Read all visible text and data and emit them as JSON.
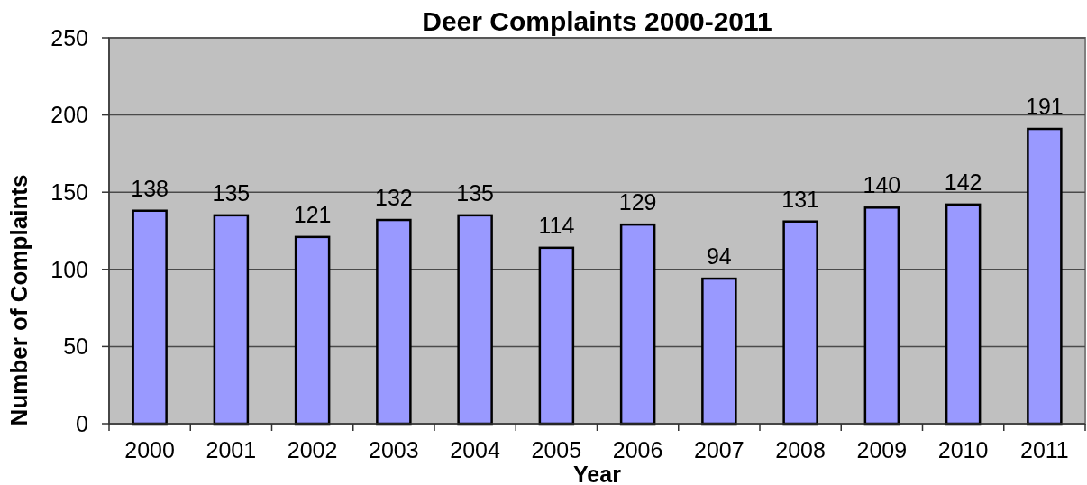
{
  "chart_data": {
    "type": "bar",
    "title": "Deer Complaints 2000-2011",
    "xlabel": "Year",
    "ylabel": "Number of Complaints",
    "categories": [
      "2000",
      "2001",
      "2002",
      "2003",
      "2004",
      "2005",
      "2006",
      "2007",
      "2008",
      "2009",
      "2010",
      "2011"
    ],
    "values": [
      138,
      135,
      121,
      132,
      135,
      114,
      129,
      94,
      131,
      140,
      142,
      191
    ],
    "color": "#9999ff",
    "ylim": [
      0,
      250
    ],
    "yticks": [
      0,
      50,
      100,
      150,
      200,
      250
    ],
    "grid": "y",
    "data_labels": true
  }
}
